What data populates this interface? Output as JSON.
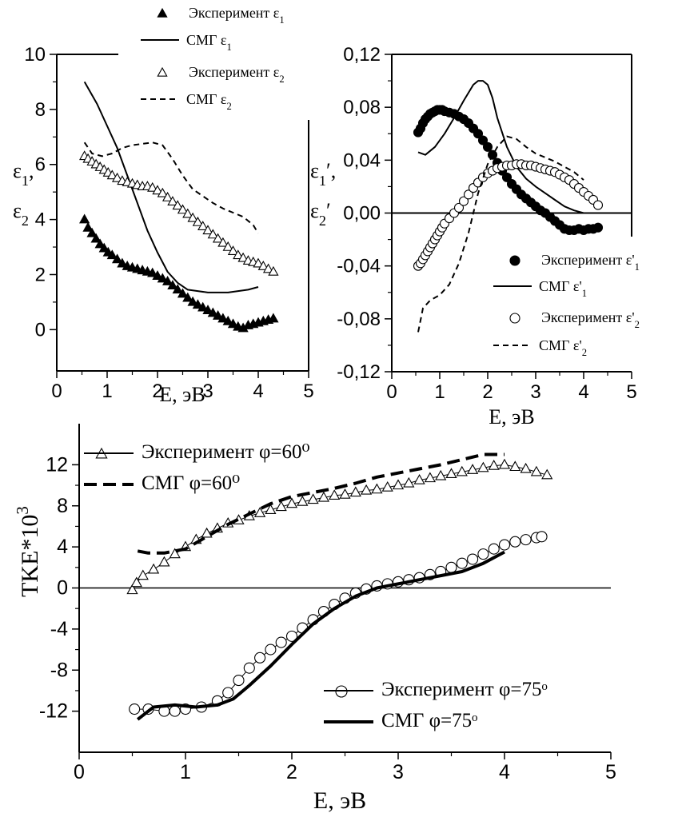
{
  "chart_data": [
    {
      "id": "eps",
      "type": "line",
      "xlabel": "E, эВ",
      "ylabel_line1": "ε₁,",
      "ylabel_line2": "ε₂",
      "xlim": [
        0,
        5
      ],
      "ylim": [
        -1.5,
        10
      ],
      "xticks": [
        "0",
        "1",
        "2",
        "3",
        "4",
        "5"
      ],
      "yticks": [
        "0",
        "2",
        "4",
        "6",
        "8",
        "10"
      ],
      "legend": [
        "Эксперимент ε₁",
        "СМГ ε₁",
        "Эксперимент ε₂",
        "СМГ ε₂"
      ],
      "series": [
        {
          "name": "Эксперимент ε₁",
          "marker": "triangle-filled",
          "x": [
            0.55,
            0.62,
            0.7,
            0.78,
            0.86,
            0.94,
            1.02,
            1.1,
            1.2,
            1.3,
            1.4,
            1.5,
            1.6,
            1.7,
            1.8,
            1.9,
            2.0,
            2.1,
            2.2,
            2.3,
            2.4,
            2.5,
            2.6,
            2.7,
            2.8,
            2.9,
            3.0,
            3.1,
            3.2,
            3.3,
            3.4,
            3.5,
            3.6,
            3.7,
            3.8,
            3.9,
            4.0,
            4.1,
            4.2,
            4.3
          ],
          "y": [
            4.0,
            3.7,
            3.5,
            3.3,
            3.1,
            2.95,
            2.8,
            2.7,
            2.55,
            2.4,
            2.3,
            2.25,
            2.2,
            2.15,
            2.1,
            2.05,
            1.95,
            1.85,
            1.75,
            1.6,
            1.45,
            1.3,
            1.15,
            1.0,
            0.9,
            0.8,
            0.7,
            0.6,
            0.5,
            0.4,
            0.3,
            0.2,
            0.1,
            0.05,
            0.15,
            0.2,
            0.25,
            0.3,
            0.35,
            0.4
          ]
        },
        {
          "name": "СМГ ε₁",
          "style": "solid",
          "x": [
            0.55,
            0.8,
            1.0,
            1.2,
            1.4,
            1.6,
            1.8,
            2.0,
            2.2,
            2.4,
            2.6,
            2.8,
            3.0,
            3.2,
            3.4,
            3.6,
            3.8,
            4.0
          ],
          "y": [
            9.0,
            8.2,
            7.4,
            6.6,
            5.6,
            4.6,
            3.6,
            2.8,
            2.1,
            1.7,
            1.45,
            1.4,
            1.35,
            1.35,
            1.35,
            1.4,
            1.45,
            1.55
          ]
        },
        {
          "name": "Эксперимент ε₂",
          "marker": "triangle-open",
          "x": [
            0.55,
            0.62,
            0.7,
            0.78,
            0.86,
            0.94,
            1.02,
            1.1,
            1.2,
            1.3,
            1.4,
            1.5,
            1.6,
            1.7,
            1.8,
            1.9,
            2.0,
            2.1,
            2.2,
            2.3,
            2.4,
            2.5,
            2.6,
            2.7,
            2.8,
            2.9,
            3.0,
            3.1,
            3.2,
            3.3,
            3.4,
            3.5,
            3.6,
            3.7,
            3.8,
            3.9,
            4.0,
            4.1,
            4.2,
            4.3
          ],
          "y": [
            6.3,
            6.2,
            6.1,
            6.0,
            5.9,
            5.8,
            5.7,
            5.6,
            5.5,
            5.4,
            5.35,
            5.3,
            5.25,
            5.2,
            5.2,
            5.15,
            5.05,
            4.95,
            4.8,
            4.65,
            4.5,
            4.35,
            4.2,
            4.05,
            3.9,
            3.75,
            3.6,
            3.45,
            3.3,
            3.15,
            3.0,
            2.85,
            2.7,
            2.6,
            2.5,
            2.45,
            2.4,
            2.3,
            2.2,
            2.1
          ]
        },
        {
          "name": "СМГ ε₂",
          "style": "dashed",
          "x": [
            0.55,
            0.7,
            0.9,
            1.1,
            1.3,
            1.5,
            1.7,
            1.9,
            2.1,
            2.3,
            2.5,
            2.7,
            2.9,
            3.1,
            3.3,
            3.5,
            3.7,
            3.9,
            4.0
          ],
          "y": [
            6.8,
            6.4,
            6.3,
            6.4,
            6.6,
            6.7,
            6.75,
            6.8,
            6.7,
            6.2,
            5.6,
            5.1,
            4.85,
            4.6,
            4.4,
            4.25,
            4.1,
            3.8,
            3.5
          ]
        }
      ]
    },
    {
      "id": "deps",
      "type": "line",
      "xlabel": "E, эВ",
      "ylabel_line1": "ε₁′,",
      "ylabel_line2": "ε₂′",
      "xlim": [
        0,
        5
      ],
      "ylim": [
        -0.12,
        0.12
      ],
      "xticks": [
        "0",
        "1",
        "2",
        "3",
        "4",
        "5"
      ],
      "yticks": [
        "-0,12",
        "-0,08",
        "-0,04",
        "0,00",
        "0,04",
        "0,08",
        "0,12"
      ],
      "legend": [
        "Эксперимент ε'₁",
        "СМГ ε'₁",
        "Эксперимент ε'₂",
        "СМГ ε'₂"
      ],
      "series": [
        {
          "name": "Эксперимент ε'₁",
          "marker": "circle-filled",
          "x": [
            0.55,
            0.6,
            0.65,
            0.7,
            0.75,
            0.8,
            0.85,
            0.9,
            0.95,
            1.0,
            1.05,
            1.1,
            1.2,
            1.3,
            1.4,
            1.5,
            1.6,
            1.7,
            1.8,
            1.9,
            2.0,
            2.1,
            2.2,
            2.3,
            2.4,
            2.5,
            2.6,
            2.7,
            2.8,
            2.9,
            3.0,
            3.1,
            3.2,
            3.3,
            3.4,
            3.5,
            3.6,
            3.7,
            3.8,
            3.9,
            4.0,
            4.1,
            4.2,
            4.3
          ],
          "y": [
            0.061,
            0.064,
            0.068,
            0.071,
            0.073,
            0.075,
            0.076,
            0.077,
            0.078,
            0.078,
            0.078,
            0.077,
            0.076,
            0.075,
            0.073,
            0.071,
            0.068,
            0.064,
            0.06,
            0.055,
            0.05,
            0.044,
            0.038,
            0.032,
            0.027,
            0.022,
            0.018,
            0.014,
            0.011,
            0.008,
            0.005,
            0.002,
            0.0,
            -0.003,
            -0.006,
            -0.009,
            -0.012,
            -0.013,
            -0.013,
            -0.012,
            -0.013,
            -0.012,
            -0.012,
            -0.011
          ]
        },
        {
          "name": "СМГ ε'₁",
          "style": "solid",
          "x": [
            0.55,
            0.7,
            0.9,
            1.1,
            1.3,
            1.5,
            1.7,
            1.8,
            1.9,
            2.0,
            2.1,
            2.2,
            2.4,
            2.6,
            2.8,
            3.0,
            3.2,
            3.4,
            3.6,
            3.8,
            4.0
          ],
          "y": [
            0.046,
            0.044,
            0.05,
            0.06,
            0.072,
            0.085,
            0.097,
            0.1,
            0.1,
            0.097,
            0.087,
            0.072,
            0.05,
            0.035,
            0.026,
            0.02,
            0.015,
            0.01,
            0.005,
            0.002,
            0.0
          ]
        },
        {
          "name": "Эксперимент ε'₂",
          "marker": "circle-open",
          "x": [
            0.55,
            0.6,
            0.65,
            0.7,
            0.75,
            0.8,
            0.85,
            0.9,
            0.95,
            1.0,
            1.05,
            1.1,
            1.2,
            1.3,
            1.4,
            1.5,
            1.6,
            1.7,
            1.8,
            1.9,
            2.0,
            2.1,
            2.2,
            2.3,
            2.4,
            2.5,
            2.6,
            2.7,
            2.8,
            2.9,
            3.0,
            3.1,
            3.2,
            3.3,
            3.4,
            3.5,
            3.6,
            3.7,
            3.8,
            3.9,
            4.0,
            4.1,
            4.2,
            4.3
          ],
          "y": [
            -0.04,
            -0.038,
            -0.035,
            -0.032,
            -0.029,
            -0.026,
            -0.023,
            -0.02,
            -0.017,
            -0.014,
            -0.011,
            -0.008,
            -0.004,
            0.0,
            0.004,
            0.009,
            0.014,
            0.019,
            0.023,
            0.027,
            0.03,
            0.032,
            0.034,
            0.035,
            0.036,
            0.036,
            0.037,
            0.037,
            0.036,
            0.036,
            0.035,
            0.034,
            0.033,
            0.032,
            0.031,
            0.029,
            0.027,
            0.025,
            0.022,
            0.019,
            0.016,
            0.013,
            0.01,
            0.006
          ]
        },
        {
          "name": "СМГ ε'₂",
          "style": "dashed",
          "x": [
            0.55,
            0.65,
            0.8,
            1.0,
            1.2,
            1.4,
            1.6,
            1.8,
            2.0,
            2.2,
            2.4,
            2.6,
            2.8,
            3.0,
            3.2,
            3.4,
            3.6,
            3.8,
            4.0
          ],
          "y": [
            -0.09,
            -0.072,
            -0.066,
            -0.062,
            -0.054,
            -0.038,
            -0.015,
            0.015,
            0.037,
            0.05,
            0.058,
            0.056,
            0.05,
            0.045,
            0.042,
            0.039,
            0.035,
            0.031,
            0.025
          ]
        }
      ]
    },
    {
      "id": "tke",
      "type": "line",
      "xlabel": "E, эВ",
      "ylabel": "TKE*10",
      "ylabel_sup": "3",
      "xlim": [
        0,
        5
      ],
      "ylim": [
        -16,
        16
      ],
      "xticks": [
        "0",
        "1",
        "2",
        "3",
        "4",
        "5"
      ],
      "yticks": [
        "-12",
        "-8",
        "-4",
        "0",
        "4",
        "8",
        "12"
      ],
      "legend": [
        "Эксперимент φ=60⁰",
        "СМГ φ=60⁰",
        "Эксперимент φ=75ᵒ",
        "СМГ φ=75ᵒ"
      ],
      "series": [
        {
          "name": "Эксперимент φ=60⁰",
          "marker": "triangle-open",
          "x": [
            0.5,
            0.54,
            0.6,
            0.7,
            0.8,
            0.9,
            1.0,
            1.1,
            1.2,
            1.3,
            1.4,
            1.5,
            1.6,
            1.7,
            1.8,
            1.9,
            2.0,
            2.1,
            2.2,
            2.3,
            2.4,
            2.5,
            2.6,
            2.7,
            2.8,
            2.9,
            3.0,
            3.1,
            3.2,
            3.3,
            3.4,
            3.5,
            3.6,
            3.7,
            3.8,
            3.9,
            4.0,
            4.1,
            4.2,
            4.3,
            4.4
          ],
          "y": [
            -0.2,
            0.5,
            1.2,
            1.8,
            2.5,
            3.3,
            4.0,
            4.7,
            5.3,
            5.8,
            6.3,
            6.6,
            7.0,
            7.3,
            7.6,
            7.9,
            8.2,
            8.4,
            8.6,
            8.8,
            9.0,
            9.1,
            9.3,
            9.5,
            9.6,
            9.8,
            10.0,
            10.2,
            10.5,
            10.7,
            10.9,
            11.1,
            11.3,
            11.5,
            11.7,
            11.9,
            12.0,
            11.8,
            11.6,
            11.3,
            11.0
          ]
        },
        {
          "name": "СМГ φ=60⁰",
          "style": "dashed-thick",
          "x": [
            0.55,
            0.65,
            0.8,
            1.0,
            1.2,
            1.4,
            1.6,
            1.8,
            2.0,
            2.2,
            2.4,
            2.6,
            2.8,
            3.0,
            3.2,
            3.4,
            3.6,
            3.8,
            4.0
          ],
          "y": [
            3.6,
            3.4,
            3.4,
            3.8,
            5.0,
            6.2,
            7.2,
            8.2,
            8.9,
            9.3,
            9.7,
            10.2,
            10.8,
            11.2,
            11.6,
            12.0,
            12.5,
            13.0,
            13.0
          ]
        },
        {
          "name": "Эксперимент φ=75ᵒ",
          "marker": "circle-open",
          "x": [
            0.52,
            0.65,
            0.8,
            0.9,
            1.0,
            1.15,
            1.3,
            1.4,
            1.5,
            1.6,
            1.7,
            1.8,
            1.9,
            2.0,
            2.1,
            2.2,
            2.3,
            2.4,
            2.5,
            2.6,
            2.7,
            2.8,
            2.9,
            3.0,
            3.1,
            3.2,
            3.3,
            3.4,
            3.5,
            3.6,
            3.7,
            3.8,
            3.9,
            4.0,
            4.1,
            4.2,
            4.3,
            4.35
          ],
          "y": [
            -11.8,
            -11.8,
            -12.0,
            -12.0,
            -11.8,
            -11.6,
            -11.0,
            -10.2,
            -9.0,
            -7.8,
            -6.8,
            -6.0,
            -5.3,
            -4.7,
            -3.9,
            -3.1,
            -2.3,
            -1.6,
            -1.0,
            -0.5,
            -0.1,
            0.2,
            0.4,
            0.6,
            0.8,
            1.0,
            1.3,
            1.6,
            2.0,
            2.4,
            2.8,
            3.3,
            3.8,
            4.2,
            4.5,
            4.7,
            4.9,
            5.0
          ]
        },
        {
          "name": "СМГ φ=75ᵒ",
          "style": "solid-thick",
          "x": [
            0.55,
            0.7,
            0.9,
            1.1,
            1.3,
            1.45,
            1.6,
            1.8,
            2.0,
            2.2,
            2.4,
            2.6,
            2.8,
            3.0,
            3.2,
            3.4,
            3.6,
            3.8,
            4.0
          ],
          "y": [
            -12.8,
            -11.6,
            -11.4,
            -11.6,
            -11.4,
            -10.8,
            -9.5,
            -7.6,
            -5.5,
            -3.5,
            -2.0,
            -0.8,
            0.0,
            0.4,
            0.8,
            1.2,
            1.6,
            2.4,
            3.5
          ]
        }
      ]
    }
  ]
}
